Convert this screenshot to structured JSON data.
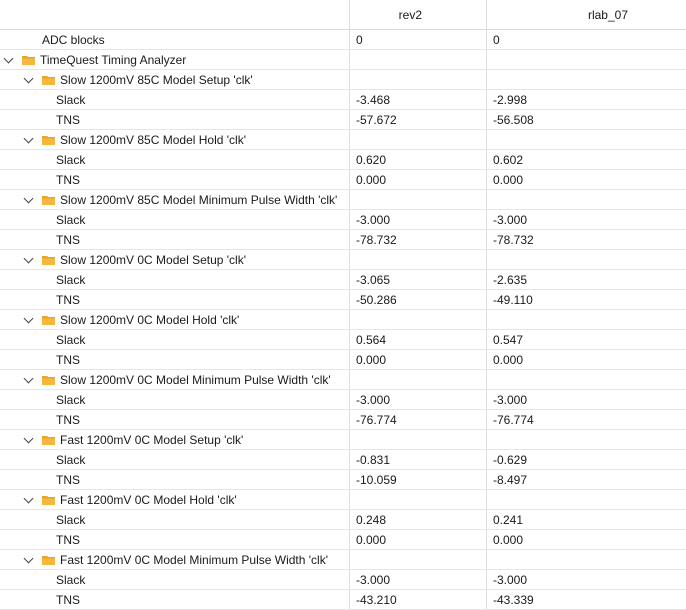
{
  "columns": {
    "rev2": "rev2",
    "rlab_07": "rlab_07"
  },
  "adc_row": {
    "label": "ADC blocks",
    "rev2": "0",
    "rlab_07": "0"
  },
  "root": {
    "label": "TimeQuest Timing Analyzer"
  },
  "groups": [
    {
      "label": "Slow 1200mV 85C Model Setup 'clk'",
      "rows": [
        {
          "label": "Slack",
          "rev2": "-3.468",
          "rlab_07": "-2.998"
        },
        {
          "label": "TNS",
          "rev2": "-57.672",
          "rlab_07": "-56.508"
        }
      ]
    },
    {
      "label": "Slow 1200mV 85C Model Hold 'clk'",
      "rows": [
        {
          "label": "Slack",
          "rev2": "0.620",
          "rlab_07": "0.602"
        },
        {
          "label": "TNS",
          "rev2": "0.000",
          "rlab_07": "0.000"
        }
      ]
    },
    {
      "label": "Slow 1200mV 85C Model Minimum Pulse Width 'clk'",
      "rows": [
        {
          "label": "Slack",
          "rev2": "-3.000",
          "rlab_07": "-3.000"
        },
        {
          "label": "TNS",
          "rev2": "-78.732",
          "rlab_07": "-78.732"
        }
      ]
    },
    {
      "label": "Slow 1200mV 0C Model Setup 'clk'",
      "rows": [
        {
          "label": "Slack",
          "rev2": "-3.065",
          "rlab_07": "-2.635"
        },
        {
          "label": "TNS",
          "rev2": "-50.286",
          "rlab_07": "-49.110"
        }
      ]
    },
    {
      "label": "Slow 1200mV 0C Model Hold 'clk'",
      "rows": [
        {
          "label": "Slack",
          "rev2": "0.564",
          "rlab_07": "0.547"
        },
        {
          "label": "TNS",
          "rev2": "0.000",
          "rlab_07": "0.000"
        }
      ]
    },
    {
      "label": "Slow 1200mV 0C Model Minimum Pulse Width 'clk'",
      "rows": [
        {
          "label": "Slack",
          "rev2": "-3.000",
          "rlab_07": "-3.000"
        },
        {
          "label": "TNS",
          "rev2": "-76.774",
          "rlab_07": "-76.774"
        }
      ]
    },
    {
      "label": "Fast 1200mV 0C Model Setup 'clk'",
      "rows": [
        {
          "label": "Slack",
          "rev2": "-0.831",
          "rlab_07": "-0.629"
        },
        {
          "label": "TNS",
          "rev2": "-10.059",
          "rlab_07": "-8.497"
        }
      ]
    },
    {
      "label": "Fast 1200mV 0C Model Hold 'clk'",
      "rows": [
        {
          "label": "Slack",
          "rev2": "0.248",
          "rlab_07": "0.241"
        },
        {
          "label": "TNS",
          "rev2": "0.000",
          "rlab_07": "0.000"
        }
      ]
    },
    {
      "label": "Fast 1200mV 0C Model Minimum Pulse Width 'clk'",
      "rows": [
        {
          "label": "Slack",
          "rev2": "-3.000",
          "rlab_07": "-3.000"
        },
        {
          "label": "TNS",
          "rev2": "-43.210",
          "rlab_07": "-43.339"
        }
      ]
    }
  ],
  "icons": {
    "expand": "chevron-down-icon",
    "folder": "folder-icon"
  },
  "colors": {
    "folder_fill": "#f5b740",
    "folder_tab": "#e6a52d",
    "grid_line": "#e6e6e6",
    "column_divider": "#dcdcdc"
  }
}
